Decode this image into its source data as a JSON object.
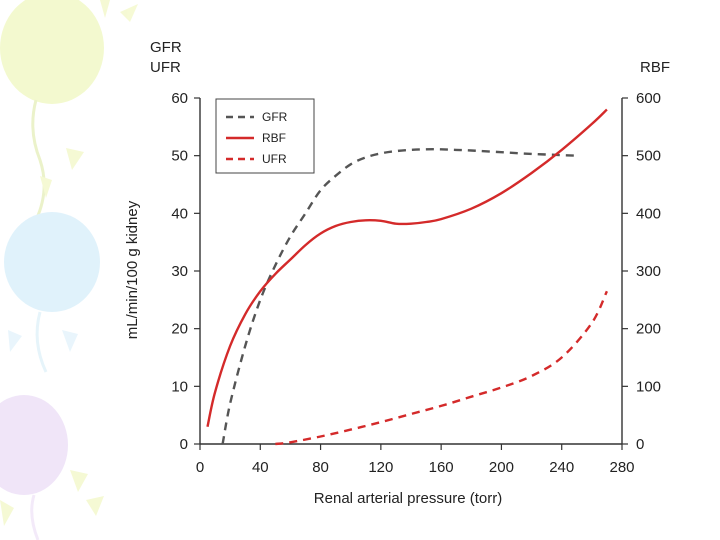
{
  "chart_data": {
    "type": "line",
    "title": "",
    "xlabel": "Renal arterial pressure (torr)",
    "ylabel_left": "mL/min/100 g kidney",
    "left_axis_header": [
      "GFR",
      "UFR"
    ],
    "right_axis_header": "RBF",
    "xlim": [
      0,
      280
    ],
    "ylim_left": [
      0,
      60
    ],
    "ylim_right": [
      0,
      600
    ],
    "x_ticks": [
      "0",
      "40",
      "80",
      "120",
      "160",
      "200",
      "240",
      "280"
    ],
    "y_left_ticks": [
      "0",
      "10",
      "20",
      "30",
      "40",
      "50",
      "60"
    ],
    "y_right_ticks": [
      "0",
      "100",
      "200",
      "300",
      "400",
      "500",
      "600"
    ],
    "grid": false,
    "legend_position": "top-left",
    "series": [
      {
        "name": "GFR",
        "axis": "left",
        "style": "dashed",
        "color": "#555555",
        "x": [
          15,
          20,
          30,
          40,
          50,
          60,
          70,
          80,
          90,
          100,
          110,
          120,
          130,
          140,
          150,
          160,
          170,
          180,
          200,
          220,
          240,
          250
        ],
        "values": [
          0,
          7,
          17,
          25,
          31,
          36,
          40,
          44,
          46.5,
          48.5,
          49.7,
          50.4,
          50.8,
          51,
          51.1,
          51.1,
          51,
          50.9,
          50.6,
          50.3,
          50.1,
          50
        ]
      },
      {
        "name": "RBF",
        "axis": "right",
        "style": "solid",
        "color": "#d42a2a",
        "x": [
          5,
          10,
          20,
          30,
          40,
          50,
          60,
          70,
          80,
          90,
          100,
          110,
          120,
          130,
          140,
          150,
          160,
          180,
          200,
          220,
          240,
          260,
          270
        ],
        "values": [
          30,
          90,
          170,
          225,
          265,
          295,
          320,
          345,
          365,
          378,
          385,
          388,
          387,
          382,
          382,
          385,
          390,
          408,
          435,
          470,
          510,
          555,
          580
        ]
      },
      {
        "name": "UFR",
        "axis": "left",
        "style": "dashed",
        "color": "#d42a2a",
        "x": [
          50,
          60,
          80,
          100,
          120,
          140,
          160,
          180,
          200,
          220,
          240,
          260,
          270
        ],
        "values": [
          0,
          0.3,
          1.3,
          2.5,
          3.8,
          5.2,
          6.6,
          8.2,
          9.8,
          11.8,
          15,
          21,
          26.5
        ]
      }
    ]
  },
  "colors": {
    "axis": "#333333",
    "gfr": "#555555",
    "rbf": "#d42a2a",
    "ufr": "#d42a2a"
  }
}
